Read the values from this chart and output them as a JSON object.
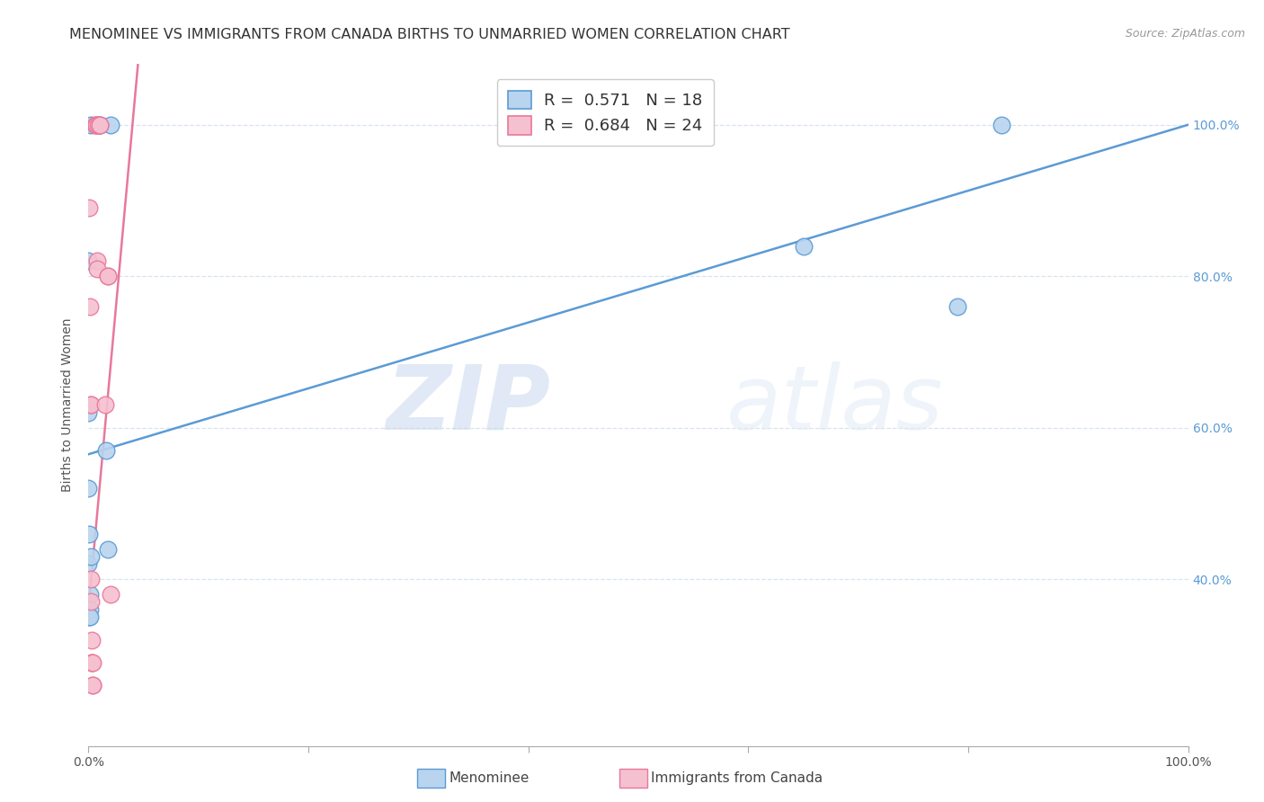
{
  "title": "MENOMINEE VS IMMIGRANTS FROM CANADA BIRTHS TO UNMARRIED WOMEN CORRELATION CHART",
  "source": "Source: ZipAtlas.com",
  "ylabel": "Births to Unmarried Women",
  "legend_label_blue": "Menominee",
  "legend_label_pink": "Immigrants from Canada",
  "watermark_zip": "ZIP",
  "watermark_atlas": "atlas",
  "blue_R": 0.571,
  "blue_N": 18,
  "pink_R": 0.684,
  "pink_N": 24,
  "blue_fill": "#b8d4ee",
  "pink_fill": "#f5c0d0",
  "blue_edge": "#5b9bd5",
  "pink_edge": "#e8789a",
  "blue_line": "#5b9bd5",
  "pink_line": "#e8789a",
  "blue_scatter": [
    [
      0.2,
      100.0
    ],
    [
      1.0,
      100.0
    ],
    [
      0.0,
      82.0
    ],
    [
      0.0,
      42.0
    ],
    [
      0.1,
      38.0
    ],
    [
      0.1,
      36.0
    ],
    [
      0.05,
      35.0
    ],
    [
      0.1,
      35.0
    ],
    [
      0.05,
      46.0
    ],
    [
      0.2,
      43.0
    ],
    [
      0.0,
      52.0
    ],
    [
      0.0,
      62.0
    ],
    [
      1.6,
      57.0
    ],
    [
      1.8,
      44.0
    ],
    [
      2.0,
      100.0
    ],
    [
      65.0,
      84.0
    ],
    [
      79.0,
      76.0
    ],
    [
      83.0,
      100.0
    ]
  ],
  "pink_scatter": [
    [
      0.05,
      89.0
    ],
    [
      0.1,
      76.0
    ],
    [
      0.2,
      63.0
    ],
    [
      0.2,
      63.0
    ],
    [
      0.2,
      40.0
    ],
    [
      0.2,
      37.0
    ],
    [
      0.3,
      32.0
    ],
    [
      0.3,
      29.0
    ],
    [
      0.3,
      29.0
    ],
    [
      0.4,
      29.0
    ],
    [
      0.4,
      26.0
    ],
    [
      0.4,
      26.0
    ],
    [
      0.6,
      100.0
    ],
    [
      0.7,
      100.0
    ],
    [
      0.7,
      100.0
    ],
    [
      0.8,
      82.0
    ],
    [
      0.8,
      81.0
    ],
    [
      0.9,
      100.0
    ],
    [
      1.0,
      100.0
    ],
    [
      1.0,
      100.0
    ],
    [
      1.5,
      63.0
    ],
    [
      1.8,
      80.0
    ],
    [
      1.8,
      80.0
    ],
    [
      2.0,
      38.0
    ]
  ],
  "blue_line_x": [
    0.0,
    100.0
  ],
  "blue_line_y": [
    56.5,
    100.0
  ],
  "pink_line_x": [
    -1.0,
    4.5
  ],
  "pink_line_y": [
    20.0,
    108.0
  ],
  "xlim": [
    0.0,
    100.0
  ],
  "ylim": [
    18.0,
    108.0
  ],
  "ytick_values": [
    40.0,
    60.0,
    80.0,
    100.0
  ],
  "ytick_labels": [
    "40.0%",
    "60.0%",
    "80.0%",
    "100.0%"
  ],
  "xtick_values": [
    0.0,
    20.0,
    40.0,
    60.0,
    80.0,
    100.0
  ],
  "xtick_labels": [
    "0.0%",
    "",
    "",
    "",
    "",
    "100.0%"
  ],
  "grid_color": "#d8e4f0",
  "background_color": "#ffffff",
  "title_color": "#333333",
  "ylabel_color": "#555555",
  "tick_color": "#5b9bd5",
  "title_fontsize": 11.5,
  "label_fontsize": 10,
  "legend_fontsize": 13,
  "scatter_size": 180
}
